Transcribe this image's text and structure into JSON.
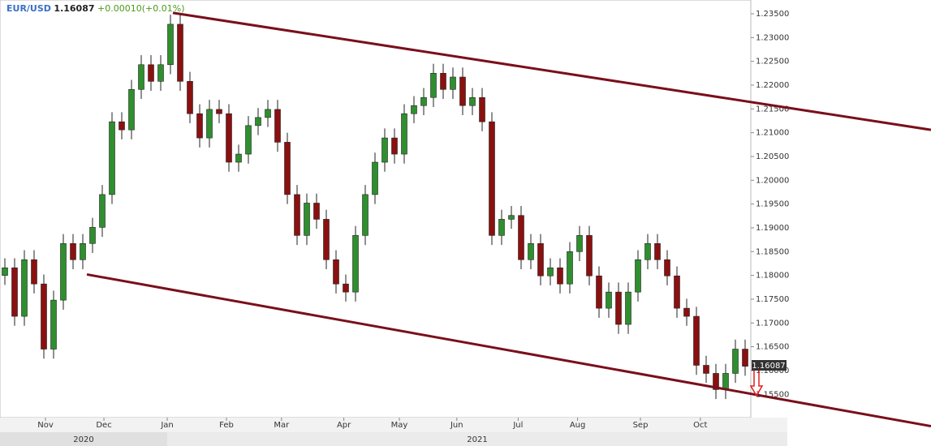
{
  "chart_data": {
    "type": "candlestick",
    "symbol": "EUR/USD",
    "price": "1.16087",
    "change": "+0.00010(+0.01%)",
    "open": [
      1.18,
      1.1816,
      1.1714,
      1.1833,
      1.1782,
      1.1645,
      1.1748,
      1.1867,
      1.1833,
      1.1867,
      1.1901,
      1.197,
      1.2123,
      1.2106,
      1.2191,
      1.2243,
      1.2208,
      1.2243,
      1.2328,
      1.2208,
      1.214,
      1.2089,
      1.2149,
      1.214,
      1.2038,
      1.2055,
      1.2115,
      1.2132,
      1.2149,
      1.208,
      1.197,
      1.1884,
      1.1952,
      1.1918,
      1.1833,
      1.1782,
      1.1765,
      1.1884,
      1.197,
      1.2038,
      1.2089,
      1.2055,
      1.214,
      1.2157,
      1.2174,
      1.2225,
      1.2191,
      1.2217,
      1.2157,
      1.2174,
      1.2123,
      1.1884,
      1.1918,
      1.1926,
      1.1833,
      1.1867,
      1.1799,
      1.1816,
      1.1782,
      1.185,
      1.1884,
      1.1799,
      1.1731,
      1.1765,
      1.1697,
      1.1765,
      1.1833,
      1.1867,
      1.1833,
      1.1799,
      1.1731,
      1.1714,
      1.1611,
      1.1594,
      1.156,
      1.1594,
      1.1645
    ],
    "high": [
      1.1836,
      1.1836,
      1.1853,
      1.1853,
      1.1802,
      1.1768,
      1.1887,
      1.1887,
      1.1887,
      1.1921,
      1.199,
      1.2143,
      1.2143,
      1.2211,
      1.2263,
      1.2263,
      1.2263,
      1.2348,
      1.2348,
      1.2228,
      1.216,
      1.2169,
      1.2169,
      1.216,
      1.2075,
      1.2135,
      1.2152,
      1.2169,
      1.2169,
      1.21,
      1.199,
      1.1972,
      1.1972,
      1.1938,
      1.1853,
      1.1802,
      1.1904,
      1.199,
      1.2058,
      1.2109,
      1.2109,
      1.216,
      1.2177,
      1.2194,
      1.2245,
      1.2245,
      1.2237,
      1.2237,
      1.2194,
      1.2194,
      1.2143,
      1.1938,
      1.1946,
      1.1946,
      1.1887,
      1.1887,
      1.1836,
      1.1836,
      1.187,
      1.1904,
      1.1904,
      1.1819,
      1.1785,
      1.1785,
      1.1785,
      1.1853,
      1.1887,
      1.1887,
      1.1853,
      1.1819,
      1.1751,
      1.1734,
      1.1631,
      1.1614,
      1.1614,
      1.1665,
      1.1665
    ],
    "low": [
      1.178,
      1.1694,
      1.1694,
      1.1762,
      1.1625,
      1.1625,
      1.1728,
      1.1813,
      1.1813,
      1.1847,
      1.1881,
      1.195,
      1.2086,
      1.2086,
      1.2171,
      1.2188,
      1.2188,
      1.2223,
      1.2188,
      1.212,
      1.2069,
      1.2069,
      1.212,
      1.2018,
      1.2018,
      1.2035,
      1.2095,
      1.2112,
      1.206,
      1.195,
      1.1864,
      1.1864,
      1.1898,
      1.1813,
      1.1762,
      1.1745,
      1.1745,
      1.1864,
      1.195,
      1.2018,
      1.2035,
      1.2035,
      1.212,
      1.2137,
      1.2154,
      1.2171,
      1.2171,
      1.2137,
      1.2137,
      1.2103,
      1.1864,
      1.1864,
      1.1898,
      1.1813,
      1.1813,
      1.1779,
      1.1779,
      1.1762,
      1.1762,
      1.183,
      1.1779,
      1.1711,
      1.1711,
      1.1677,
      1.1677,
      1.1745,
      1.1813,
      1.1813,
      1.1779,
      1.1711,
      1.1694,
      1.1591,
      1.1574,
      1.154,
      1.154,
      1.1574,
      1.1589
    ],
    "close": [
      1.1816,
      1.1714,
      1.1833,
      1.1782,
      1.1645,
      1.1748,
      1.1867,
      1.1833,
      1.1867,
      1.1901,
      1.197,
      1.2123,
      1.2106,
      1.2191,
      1.2243,
      1.2208,
      1.2243,
      1.2328,
      1.2208,
      1.214,
      1.2089,
      1.2149,
      1.214,
      1.2038,
      1.2055,
      1.2115,
      1.2132,
      1.2149,
      1.208,
      1.197,
      1.1884,
      1.1952,
      1.1918,
      1.1833,
      1.1782,
      1.1765,
      1.1884,
      1.197,
      1.2038,
      1.2089,
      1.2055,
      1.214,
      1.2157,
      1.2174,
      1.2225,
      1.2191,
      1.2217,
      1.2157,
      1.2174,
      1.2123,
      1.1884,
      1.1918,
      1.1926,
      1.1833,
      1.1867,
      1.1799,
      1.1816,
      1.1782,
      1.185,
      1.1884,
      1.1799,
      1.1731,
      1.1765,
      1.1697,
      1.1765,
      1.1833,
      1.1867,
      1.1833,
      1.1799,
      1.1731,
      1.1714,
      1.1611,
      1.1594,
      1.156,
      1.1594,
      1.1645,
      1.1609
    ],
    "up_color": "#2f8f2f",
    "down_color": "#8b1010",
    "ylim": [
      1.1501,
      1.2379
    ],
    "yticks": [
      {
        "value": 1.155,
        "label": "1.15500"
      },
      {
        "value": 1.16,
        "label": "1.16000"
      },
      {
        "value": 1.165,
        "label": "1.16500"
      },
      {
        "value": 1.17,
        "label": "1.17000"
      },
      {
        "value": 1.175,
        "label": "1.17500"
      },
      {
        "value": 1.18,
        "label": "1.18000"
      },
      {
        "value": 1.185,
        "label": "1.18500"
      },
      {
        "value": 1.19,
        "label": "1.19000"
      },
      {
        "value": 1.195,
        "label": "1.19500"
      },
      {
        "value": 1.2,
        "label": "1.20000"
      },
      {
        "value": 1.205,
        "label": "1.20500"
      },
      {
        "value": 1.21,
        "label": "1.21000"
      },
      {
        "value": 1.215,
        "label": "1.21500"
      },
      {
        "value": 1.22,
        "label": "1.22000"
      },
      {
        "value": 1.225,
        "label": "1.22500"
      },
      {
        "value": 1.23,
        "label": "1.23000"
      },
      {
        "value": 1.235,
        "label": "1.23500"
      }
    ],
    "xticks": [
      {
        "value": 4.17,
        "label": "Nov"
      },
      {
        "value": 10.17,
        "label": "Dec"
      },
      {
        "value": 16.67,
        "label": "Jan"
      },
      {
        "value": 22.75,
        "label": "Feb"
      },
      {
        "value": 28.4,
        "label": "Mar"
      },
      {
        "value": 34.8,
        "label": "Apr"
      },
      {
        "value": 40.5,
        "label": "May"
      },
      {
        "value": 46.4,
        "label": "Jun"
      },
      {
        "value": 52.7,
        "label": "Jul"
      },
      {
        "value": 58.8,
        "label": "Aug"
      },
      {
        "value": 65.25,
        "label": "Sep"
      },
      {
        "value": 71.4,
        "label": "Oct"
      }
    ],
    "years": [
      {
        "value": -0.5,
        "label": "2020"
      },
      {
        "value": 16.67,
        "label": "2021"
      }
    ],
    "trendlines": [
      {
        "color": "#7a0f1c",
        "x": [
          17.25,
          95.08
        ],
        "y": [
          1.2352,
          1.2106
        ]
      },
      {
        "color": "#7a0f1c",
        "x": [
          8.42,
          95.08
        ],
        "y": [
          1.1802,
          1.1483
        ]
      }
    ]
  }
}
